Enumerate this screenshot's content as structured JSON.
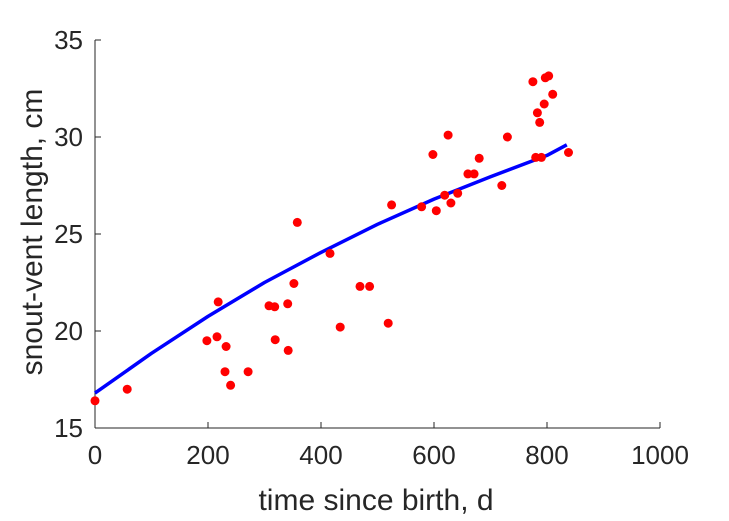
{
  "chart_data": {
    "type": "scatter",
    "title": "",
    "xlabel": "time since birth, d",
    "ylabel": "snout-vent length, cm",
    "xlim": [
      0,
      1000
    ],
    "ylim": [
      15,
      35
    ],
    "xticks": [
      0,
      200,
      400,
      600,
      800,
      1000
    ],
    "yticks": [
      15,
      20,
      25,
      30,
      35
    ],
    "xtick_labels": [
      "0",
      "200",
      "400",
      "600",
      "800",
      "1000"
    ],
    "ytick_labels": [
      "15",
      "20",
      "25",
      "30",
      "35"
    ],
    "grid": false,
    "legend": "none",
    "series": [
      {
        "type": "scatter",
        "color": "#ff0000",
        "points": [
          [
            0,
            16.4
          ],
          [
            57,
            17.0
          ],
          [
            198,
            19.5
          ],
          [
            216,
            19.7
          ],
          [
            218,
            21.5
          ],
          [
            230,
            17.9
          ],
          [
            232,
            19.2
          ],
          [
            240,
            17.2
          ],
          [
            271,
            17.9
          ],
          [
            308,
            21.3
          ],
          [
            318,
            21.25
          ],
          [
            319,
            19.55
          ],
          [
            341,
            21.4
          ],
          [
            342,
            19.0
          ],
          [
            352,
            22.45
          ],
          [
            358,
            25.6
          ],
          [
            416,
            24.0
          ],
          [
            434,
            20.2
          ],
          [
            469,
            22.3
          ],
          [
            486,
            22.3
          ],
          [
            519,
            20.4
          ],
          [
            525,
            26.5
          ],
          [
            578,
            26.4
          ],
          [
            598,
            29.1
          ],
          [
            604,
            26.2
          ],
          [
            619,
            27.0
          ],
          [
            625,
            30.1
          ],
          [
            630,
            26.6
          ],
          [
            642,
            27.1
          ],
          [
            660,
            28.1
          ],
          [
            671,
            28.1
          ],
          [
            680,
            28.9
          ],
          [
            720,
            27.5
          ],
          [
            730,
            30.0
          ],
          [
            775,
            32.85
          ],
          [
            780,
            28.95
          ],
          [
            783,
            31.25
          ],
          [
            787,
            30.75
          ],
          [
            790,
            28.95
          ],
          [
            795,
            31.7
          ],
          [
            797,
            33.05
          ],
          [
            803,
            33.15
          ],
          [
            810,
            32.2
          ],
          [
            838,
            29.2
          ]
        ]
      },
      {
        "type": "line",
        "color": "#0000ff",
        "points": [
          [
            0,
            16.8
          ],
          [
            100,
            18.85
          ],
          [
            200,
            20.75
          ],
          [
            300,
            22.5
          ],
          [
            400,
            24.05
          ],
          [
            500,
            25.5
          ],
          [
            600,
            26.8
          ],
          [
            700,
            27.95
          ],
          [
            800,
            29.05
          ],
          [
            835,
            29.6
          ]
        ]
      }
    ]
  }
}
